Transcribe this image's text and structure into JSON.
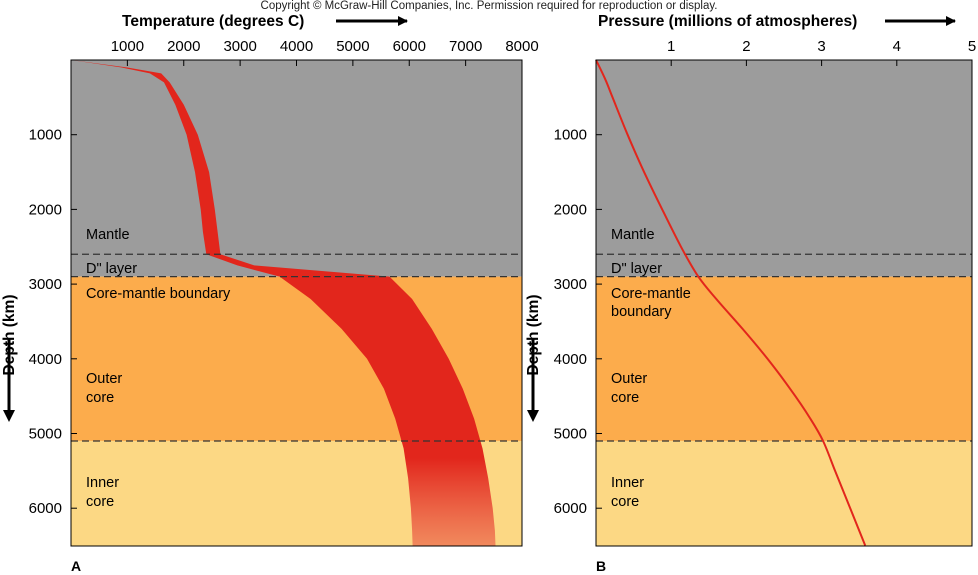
{
  "copyright": "Copyright © McGraw-Hill Companies, Inc. Permission required for reproduction or display.",
  "colors": {
    "mantle": "#9c9c9c",
    "outer_core": "#fcac4c",
    "inner_core": "#fcd884",
    "curve": "#e2261c",
    "dashed": "#333333"
  },
  "depth_axis": {
    "label": "Depth (km)",
    "ticks": [
      "1000",
      "2000",
      "3000",
      "4000",
      "5000",
      "6000"
    ]
  },
  "chart_data": [
    {
      "type": "area",
      "panel_label": "A",
      "xlabel": "Temperature (degrees C)",
      "ylabel": "Depth (km)",
      "xlim": [
        0,
        8000
      ],
      "ylim": [
        0,
        6500
      ],
      "x_ticks": [
        "1000",
        "2000",
        "3000",
        "4000",
        "5000",
        "6000",
        "7000",
        "8000"
      ],
      "zones": [
        {
          "name": "Mantle",
          "depth_range": [
            0,
            2600
          ]
        },
        {
          "name": "D\" layer",
          "depth_range": [
            2600,
            2900
          ]
        },
        {
          "name": "Core-mantle boundary",
          "depth": 2900
        },
        {
          "name": "Outer core",
          "depth_range": [
            2900,
            5100
          ]
        },
        {
          "name": "Inner core",
          "depth_range": [
            5100,
            6500
          ]
        }
      ],
      "temperature_band": {
        "depth": [
          0,
          100,
          180,
          300,
          600,
          1000,
          1500,
          2000,
          2300,
          2600,
          2750,
          2900,
          3200,
          3600,
          4000,
          4400,
          4800,
          5200,
          5600,
          6000,
          6300,
          6500
        ],
        "low": [
          0,
          900,
          1400,
          1650,
          1850,
          2050,
          2200,
          2300,
          2340,
          2400,
          2950,
          3700,
          4250,
          4800,
          5250,
          5550,
          5750,
          5900,
          5980,
          6030,
          6050,
          6060
        ],
        "high": [
          0,
          1000,
          1600,
          1750,
          2000,
          2250,
          2450,
          2550,
          2600,
          2650,
          3250,
          5650,
          6050,
          6400,
          6700,
          6950,
          7150,
          7300,
          7400,
          7480,
          7520,
          7530
        ]
      }
    },
    {
      "type": "line",
      "panel_label": "B",
      "xlabel": "Pressure (millions of atmospheres)",
      "ylabel": "Depth (km)",
      "xlim": [
        0,
        5
      ],
      "ylim": [
        0,
        6500
      ],
      "x_ticks": [
        "1",
        "2",
        "3",
        "4",
        "5"
      ],
      "zones": [
        {
          "name": "Mantle",
          "depth_range": [
            0,
            2600
          ]
        },
        {
          "name": "D\" layer",
          "depth_range": [
            2600,
            2900
          ]
        },
        {
          "name": "Core-mantle boundary",
          "depth": 2900
        },
        {
          "name": "Outer core",
          "depth_range": [
            2900,
            5100
          ]
        },
        {
          "name": "Inner core",
          "depth_range": [
            5100,
            6500
          ]
        }
      ],
      "pressure_curve": {
        "depth": [
          0,
          250,
          500,
          1000,
          1500,
          2000,
          2500,
          2900,
          3200,
          3600,
          4000,
          4400,
          4800,
          5100,
          5500,
          6000,
          6500
        ],
        "pressure": [
          0,
          0.12,
          0.22,
          0.42,
          0.64,
          0.88,
          1.13,
          1.36,
          1.6,
          1.95,
          2.28,
          2.58,
          2.85,
          3.02,
          3.18,
          3.38,
          3.58
        ]
      }
    }
  ],
  "labels": {
    "A": {
      "mantle": "Mantle",
      "dlayer": "D\" layer",
      "cmb": "Core-mantle boundary",
      "outer1": "Outer",
      "outer2": "core",
      "inner1": "Inner",
      "inner2": "core"
    },
    "B": {
      "mantle": "Mantle",
      "dlayer": "D\" layer",
      "cmb1": "Core-mantle",
      "cmb2": "boundary",
      "outer1": "Outer",
      "outer2": "core",
      "inner1": "Inner",
      "inner2": "core"
    }
  }
}
